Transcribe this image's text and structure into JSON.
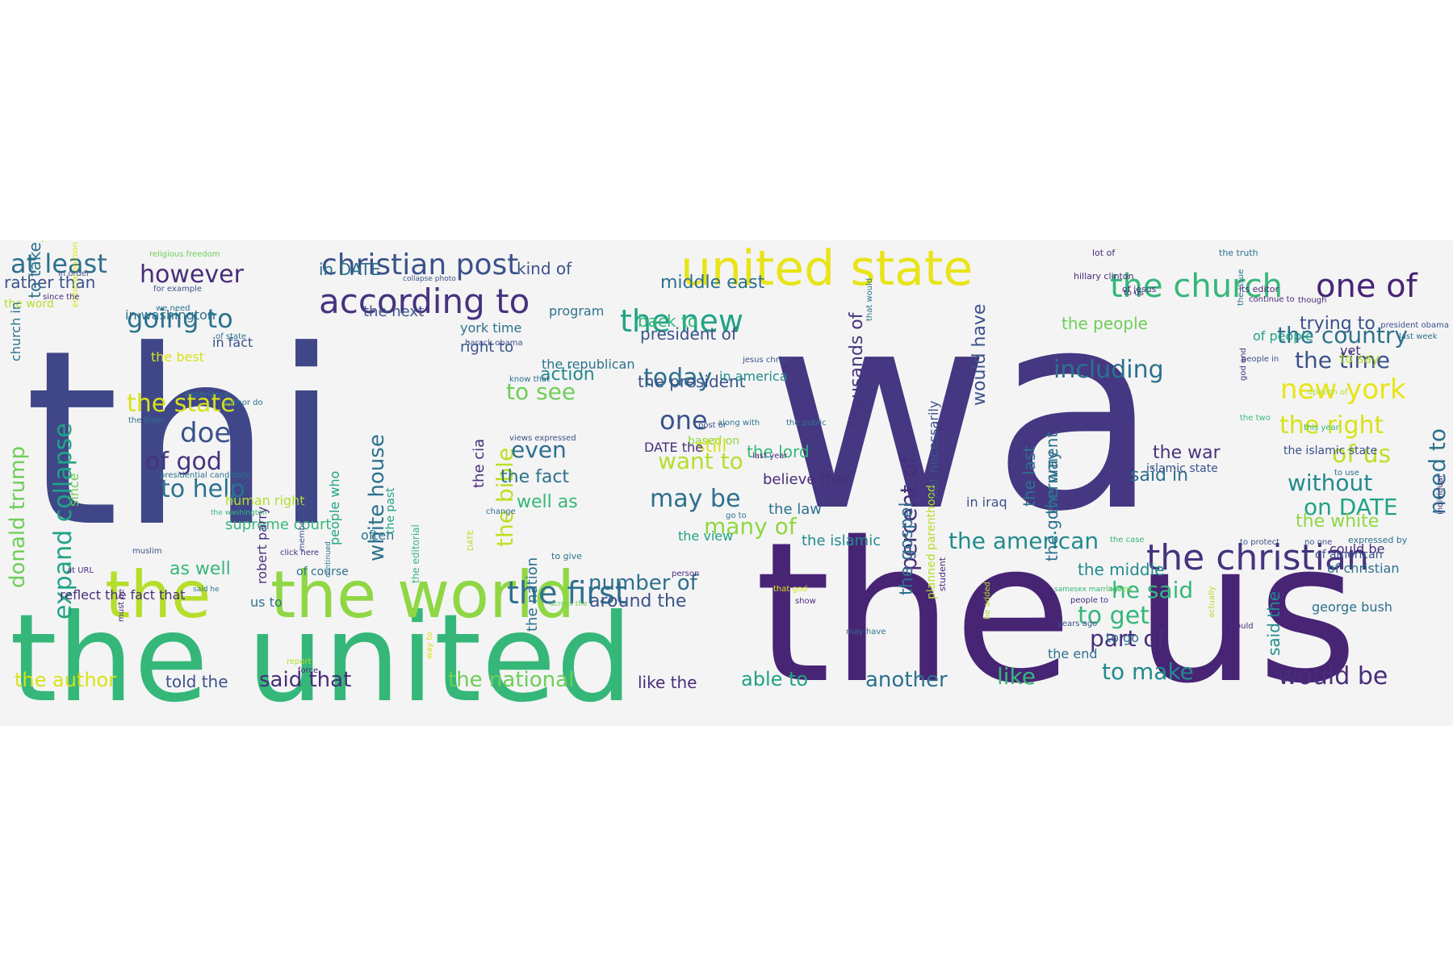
{
  "colors": {
    "background": "#f4f4f4",
    "palette": [
      "#3f4788",
      "#453781",
      "#482475",
      "#2d708e",
      "#238a8d",
      "#20a386",
      "#35b779",
      "#6ece58",
      "#b5de2b",
      "#fde725"
    ]
  },
  "word_cloud": {
    "words": [
      {
        "text": "thi",
        "c": "#3f4788",
        "s": 300
      },
      {
        "text": "wa",
        "c": "#453781",
        "s": 340
      },
      {
        "text": "the us",
        "c": "#482475",
        "s": 240
      },
      {
        "text": "the united",
        "c": "#35b779",
        "s": 150
      },
      {
        "text": "the world",
        "c": "#8fd744",
        "s": 80
      },
      {
        "text": "the",
        "c": "#b5de2b",
        "s": 80
      },
      {
        "text": "united state",
        "c": "#e8e419",
        "s": 60
      },
      {
        "text": "the church",
        "c": "#35b779",
        "s": 40
      },
      {
        "text": "one of",
        "c": "#482475",
        "s": 40
      },
      {
        "text": "the christian",
        "c": "#46337e",
        "s": 44
      },
      {
        "text": "according to",
        "c": "#46337e",
        "s": 42
      },
      {
        "text": "christian post",
        "c": "#3b528b",
        "s": 36
      },
      {
        "text": "the new",
        "c": "#20a386",
        "s": 38
      },
      {
        "text": "the first",
        "c": "#2d708e",
        "s": 38
      },
      {
        "text": "the country",
        "c": "#2d708e",
        "s": 28
      },
      {
        "text": "new york",
        "c": "#e8e419",
        "s": 34
      },
      {
        "text": "the right",
        "c": "#d8e219",
        "s": 30
      },
      {
        "text": "at least",
        "c": "#2d708e",
        "s": 32
      },
      {
        "text": "going to",
        "c": "#2c728e",
        "s": 32
      },
      {
        "text": "however",
        "c": "#472d7b",
        "s": 30
      },
      {
        "text": "doe",
        "c": "#3b528b",
        "s": 34
      },
      {
        "text": "of god",
        "c": "#46337e",
        "s": 30
      },
      {
        "text": "to help",
        "c": "#2c728e",
        "s": 30
      },
      {
        "text": "the state",
        "c": "#d8e219",
        "s": 30
      },
      {
        "text": "expand collapse",
        "c": "#20a386",
        "s": 30
      },
      {
        "text": "donald trump",
        "c": "#6ece58",
        "s": 26
      },
      {
        "text": "white house",
        "c": "#2c728e",
        "s": 26
      },
      {
        "text": "the bible",
        "c": "#bddf26",
        "s": 28
      },
      {
        "text": "the american",
        "c": "#238a8d",
        "s": 28
      },
      {
        "text": "percent of",
        "c": "#472d7b",
        "s": 28
      },
      {
        "text": "thousands of",
        "c": "#46337e",
        "s": 22
      },
      {
        "text": "would have",
        "c": "#3b528b",
        "s": 22
      },
      {
        "text": "including",
        "c": "#2c728e",
        "s": 30
      },
      {
        "text": "the time",
        "c": "#3b528b",
        "s": 28
      },
      {
        "text": "of us",
        "c": "#bddf26",
        "s": 30
      },
      {
        "text": "without",
        "c": "#238a8d",
        "s": 28
      },
      {
        "text": "need to",
        "c": "#2c728e",
        "s": 28
      },
      {
        "text": "on DATE",
        "c": "#20a386",
        "s": 28
      },
      {
        "text": "today",
        "c": "#2d708e",
        "s": 30
      },
      {
        "text": "one",
        "c": "#3b528b",
        "s": 32
      },
      {
        "text": "even",
        "c": "#2d708e",
        "s": 28
      },
      {
        "text": "want to",
        "c": "#b5de2b",
        "s": 28
      },
      {
        "text": "may be",
        "c": "#2d708e",
        "s": 30
      },
      {
        "text": "many of",
        "c": "#8fd744",
        "s": 28
      },
      {
        "text": "the fact",
        "c": "#2c728e",
        "s": 22
      },
      {
        "text": "well as",
        "c": "#35b779",
        "s": 22
      },
      {
        "text": "number of",
        "c": "#2d708e",
        "s": 26
      },
      {
        "text": "around the",
        "c": "#3b528b",
        "s": 22
      },
      {
        "text": "to get",
        "c": "#35b779",
        "s": 30
      },
      {
        "text": "he said",
        "c": "#35b779",
        "s": 28
      },
      {
        "text": "part of",
        "c": "#472d7b",
        "s": 28
      },
      {
        "text": "to make",
        "c": "#238a8d",
        "s": 28
      },
      {
        "text": "would be",
        "c": "#472d7b",
        "s": 30
      },
      {
        "text": "like",
        "c": "#35b779",
        "s": 28
      },
      {
        "text": "another",
        "c": "#2c728e",
        "s": 26
      },
      {
        "text": "able to",
        "c": "#20a386",
        "s": 24
      },
      {
        "text": "the national",
        "c": "#6ece58",
        "s": 26
      },
      {
        "text": "said that",
        "c": "#472d7b",
        "s": 26
      },
      {
        "text": "the author",
        "c": "#d8e219",
        "s": 24
      },
      {
        "text": "told the",
        "c": "#3b528b",
        "s": 20
      },
      {
        "text": "like the",
        "c": "#472d7b",
        "s": 20
      },
      {
        "text": "the war",
        "c": "#46337e",
        "s": 22
      },
      {
        "text": "said in",
        "c": "#2c728e",
        "s": 22
      },
      {
        "text": "the people",
        "c": "#6ece58",
        "s": 20
      },
      {
        "text": "trying to",
        "c": "#3b528b",
        "s": 22
      },
      {
        "text": "the white",
        "c": "#8fd744",
        "s": 22
      },
      {
        "text": "the middle",
        "c": "#238a8d",
        "s": 20
      },
      {
        "text": "the last",
        "c": "#2c728e",
        "s": 20
      },
      {
        "text": "the way",
        "c": "#2d708e",
        "s": 20
      },
      {
        "text": "the government",
        "c": "#2d708e",
        "s": 20
      },
      {
        "text": "planned parenthood",
        "c": "#b5de2b",
        "s": 14
      },
      {
        "text": "not necessarily",
        "c": "#3b528b",
        "s": 16
      },
      {
        "text": "the gospel",
        "c": "#2d708e",
        "s": 22
      },
      {
        "text": "in iraq",
        "c": "#3b528b",
        "s": 16
      },
      {
        "text": "based on",
        "c": "#8fd744",
        "s": 14
      },
      {
        "text": "believe that",
        "c": "#472d7b",
        "s": 18
      },
      {
        "text": "the lord",
        "c": "#35b779",
        "s": 20
      },
      {
        "text": "still",
        "c": "#d8e219",
        "s": 22
      },
      {
        "text": "the law",
        "c": "#2c728e",
        "s": 18
      },
      {
        "text": "the view",
        "c": "#20a386",
        "s": 16
      },
      {
        "text": "the islamic",
        "c": "#238a8d",
        "s": 18
      },
      {
        "text": "the nation",
        "c": "#2c728e",
        "s": 18
      },
      {
        "text": "the cia",
        "c": "#472d7b",
        "s": 18
      },
      {
        "text": "to see",
        "c": "#6ece58",
        "s": 28
      },
      {
        "text": "the republican",
        "c": "#2c728e",
        "s": 16
      },
      {
        "text": "action",
        "c": "#238a8d",
        "s": 22
      },
      {
        "text": "right to",
        "c": "#3b528b",
        "s": 18
      },
      {
        "text": "york time",
        "c": "#2d708e",
        "s": 16
      },
      {
        "text": "the next",
        "c": "#3b528b",
        "s": 18
      },
      {
        "text": "in DATE",
        "c": "#2c728e",
        "s": 20
      },
      {
        "text": "in washington",
        "c": "#2c728e",
        "s": 16
      },
      {
        "text": "back to",
        "c": "#35b779",
        "s": 20
      },
      {
        "text": "the president",
        "c": "#3b528b",
        "s": 20
      },
      {
        "text": "president of",
        "c": "#3b528b",
        "s": 20
      },
      {
        "text": "middle east",
        "c": "#2d708e",
        "s": 22
      },
      {
        "text": "in america",
        "c": "#238a8d",
        "s": 16
      },
      {
        "text": "kind of",
        "c": "#3b528b",
        "s": 20
      },
      {
        "text": "program",
        "c": "#2c728e",
        "s": 16
      },
      {
        "text": "the best",
        "c": "#d8e219",
        "s": 16
      },
      {
        "text": "the word",
        "c": "#b5de2b",
        "s": 14
      },
      {
        "text": "rather than",
        "c": "#3b528b",
        "s": 20
      },
      {
        "text": "to take",
        "c": "#2d708e",
        "s": 20
      },
      {
        "text": "church in",
        "c": "#2d708e",
        "s": 16
      },
      {
        "text": "since",
        "c": "#6ece58",
        "s": 16
      },
      {
        "text": "people who",
        "c": "#20a386",
        "s": 16
      },
      {
        "text": "the past",
        "c": "#20a386",
        "s": 14
      },
      {
        "text": "the editorial",
        "c": "#35b779",
        "s": 12
      },
      {
        "text": "supreme court",
        "c": "#35b779",
        "s": 18
      },
      {
        "text": "human right",
        "c": "#b5de2b",
        "s": 16
      },
      {
        "text": "presidential candidate",
        "c": "#2c728e",
        "s": 10
      },
      {
        "text": "robert parry",
        "c": "#472d7b",
        "s": 16
      },
      {
        "text": "often",
        "c": "#2c728e",
        "s": 16
      },
      {
        "text": "of course",
        "c": "#2d708e",
        "s": 14
      },
      {
        "text": "as well",
        "c": "#35b779",
        "s": 22
      },
      {
        "text": "us to",
        "c": "#2c728e",
        "s": 16
      },
      {
        "text": "reflect the fact that",
        "c": "#472d7b",
        "s": 16
      },
      {
        "text": "in fact",
        "c": "#3b528b",
        "s": 16
      },
      {
        "text": "DATE the",
        "c": "#472d7b",
        "s": 16
      },
      {
        "text": "yet",
        "c": "#472d7b",
        "s": 16
      },
      {
        "text": "to say",
        "c": "#b5de2b",
        "s": 16
      },
      {
        "text": "of people",
        "c": "#20a386",
        "s": 16
      },
      {
        "text": "the islamic state",
        "c": "#3b528b",
        "s": 14
      },
      {
        "text": "islamic state",
        "c": "#3b528b",
        "s": 14
      },
      {
        "text": "said the",
        "c": "#238a8d",
        "s": 20
      },
      {
        "text": "to go",
        "c": "#2d708e",
        "s": 16
      },
      {
        "text": "the end",
        "c": "#2c728e",
        "s": 16
      },
      {
        "text": "george bush",
        "c": "#2d708e",
        "s": 16
      },
      {
        "text": "of christian",
        "c": "#2c728e",
        "s": 16
      },
      {
        "text": "could be",
        "c": "#472d7b",
        "s": 16
      },
      {
        "text": "of american",
        "c": "#3b528b",
        "s": 14
      },
      {
        "text": "expressed by",
        "c": "#2d708e",
        "s": 11
      },
      {
        "text": "to protect",
        "c": "#3b528b",
        "s": 10
      },
      {
        "text": "no one",
        "c": "#3b528b",
        "s": 10
      },
      {
        "text": "lot of",
        "c": "#472d7b",
        "s": 11
      },
      {
        "text": "the truth",
        "c": "#2c728e",
        "s": 11
      },
      {
        "text": "hillary clinton",
        "c": "#472d7b",
        "s": 11
      },
      {
        "text": "of jesus",
        "c": "#472d7b",
        "s": 11
      },
      {
        "text": "to us",
        "c": "#472d7b",
        "s": 10
      },
      {
        "text": "its editor",
        "c": "#472d7b",
        "s": 11
      },
      {
        "text": "continue to",
        "c": "#472d7b",
        "s": 10
      },
      {
        "text": "the issue",
        "c": "#2d708e",
        "s": 10
      },
      {
        "text": "though",
        "c": "#472d7b",
        "s": 10
      },
      {
        "text": "president obama",
        "c": "#3b528b",
        "s": 10
      },
      {
        "text": "last week",
        "c": "#2d708e",
        "s": 10
      },
      {
        "text": "people in",
        "c": "#3b528b",
        "s": 10
      },
      {
        "text": "god and",
        "c": "#472d7b",
        "s": 10
      },
      {
        "text": "opinion of",
        "c": "#b5de2b",
        "s": 10
      },
      {
        "text": "the two",
        "c": "#35b779",
        "s": 10
      },
      {
        "text": "this year",
        "c": "#35b779",
        "s": 10
      },
      {
        "text": "to use",
        "c": "#2d708e",
        "s": 10
      },
      {
        "text": "individual",
        "c": "#472d7b",
        "s": 10
      },
      {
        "text": "that would",
        "c": "#2c728e",
        "s": 10
      },
      {
        "text": "collapse photo",
        "c": "#3b528b",
        "s": 9
      },
      {
        "text": "religious freedom",
        "c": "#6ece58",
        "s": 10
      },
      {
        "text": "in order",
        "c": "#3b528b",
        "s": 10
      },
      {
        "text": "for example",
        "c": "#3b528b",
        "s": 10
      },
      {
        "text": "editorial opinion",
        "c": "#d8e219",
        "s": 10
      },
      {
        "text": "since the",
        "c": "#472d7b",
        "s": 10
      },
      {
        "text": "we need",
        "c": "#2c728e",
        "s": 10
      },
      {
        "text": "of state",
        "c": "#2c728e",
        "s": 10
      },
      {
        "text": "experience",
        "c": "#2d708e",
        "s": 10
      },
      {
        "text": "the bush",
        "c": "#2c728e",
        "s": 10
      },
      {
        "text": "author do",
        "c": "#2d708e",
        "s": 10
      },
      {
        "text": "members of",
        "c": "#3b528b",
        "s": 10
      },
      {
        "text": "continued",
        "c": "#2c728e",
        "s": 9
      },
      {
        "text": "the washington",
        "c": "#35b779",
        "s": 9
      },
      {
        "text": "barack obama",
        "c": "#3b528b",
        "s": 10
      },
      {
        "text": "know that",
        "c": "#2d708e",
        "s": 10
      },
      {
        "text": "views expressed",
        "c": "#3b528b",
        "s": 10
      },
      {
        "text": "jesus christ",
        "c": "#3b528b",
        "s": 10
      },
      {
        "text": "post or",
        "c": "#3b528b",
        "s": 10
      },
      {
        "text": "along with",
        "c": "#2c728e",
        "s": 10
      },
      {
        "text": "last year",
        "c": "#472d7b",
        "s": 10
      },
      {
        "text": "the public",
        "c": "#2c728e",
        "s": 10
      },
      {
        "text": "DATE",
        "c": "#b5de2b",
        "s": 10
      },
      {
        "text": "change",
        "c": "#2d708e",
        "s": 10
      },
      {
        "text": "go to",
        "c": "#2c728e",
        "s": 10
      },
      {
        "text": "to give",
        "c": "#2c728e",
        "s": 11
      },
      {
        "text": "person",
        "c": "#472d7b",
        "s": 10
      },
      {
        "text": "muslim",
        "c": "#3b528b",
        "s": 10
      },
      {
        "text": "at URL",
        "c": "#472d7b",
        "s": 10
      },
      {
        "text": "must be",
        "c": "#472d7b",
        "s": 10
      },
      {
        "text": "said he",
        "c": "#2c728e",
        "s": 9
      },
      {
        "text": "click here",
        "c": "#472d7b",
        "s": 10
      },
      {
        "text": "report",
        "c": "#b5de2b",
        "s": 10
      },
      {
        "text": "way to",
        "c": "#d8e219",
        "s": 10
      },
      {
        "text": "across the",
        "c": "#6ece58",
        "s": 9
      },
      {
        "text": "force",
        "c": "#472d7b",
        "s": 10
      },
      {
        "text": "that god",
        "c": "#d8e219",
        "s": 10
      },
      {
        "text": "show",
        "c": "#472d7b",
        "s": 10
      },
      {
        "text": "student",
        "c": "#472d7b",
        "s": 11
      },
      {
        "text": "may have",
        "c": "#2c728e",
        "s": 10
      },
      {
        "text": "he added",
        "c": "#b5de2b",
        "s": 10
      },
      {
        "text": "samesex marriage",
        "c": "#35b779",
        "s": 9
      },
      {
        "text": "in new",
        "c": "#6ece58",
        "s": 10
      },
      {
        "text": "people to",
        "c": "#472d7b",
        "s": 10
      },
      {
        "text": "actually",
        "c": "#b5de2b",
        "s": 10
      },
      {
        "text": "years ago",
        "c": "#3b528b",
        "s": 10
      },
      {
        "text": "it would",
        "c": "#472d7b",
        "s": 10
      },
      {
        "text": "the case",
        "c": "#35b779",
        "s": 10
      },
      {
        "text": "necessarily reflect",
        "c": "#b5de2b",
        "s": 10
      }
    ]
  }
}
